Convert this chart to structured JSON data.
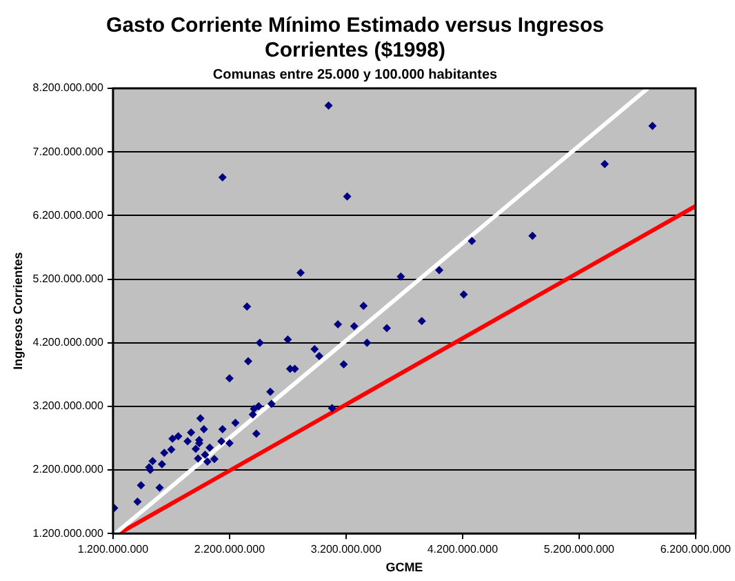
{
  "chart_data": {
    "type": "scatter",
    "title": "Gasto Corriente Mínimo Estimado versus Ingresos Corrientes ($1998)",
    "subtitle": "Comunas entre 25.000 y 100.000 habitantes",
    "xlabel": "GCME",
    "ylabel": "Ingresos Corrientes",
    "series": [
      {
        "color": "#000080",
        "marker": "diamond",
        "x": [
          2140000000,
          3050000000,
          3210000000,
          2810000000,
          2350000000,
          2460000000,
          2700000000,
          2930000000,
          3130000000,
          3270000000,
          3350000000,
          3380000000,
          3550000000,
          3670000000,
          5830000000,
          5420000000,
          4800000000,
          4280000000,
          4000000000,
          4210000000,
          3850000000,
          1210000000,
          1410000000,
          1440000000,
          1600000000,
          1520000000,
          1510000000,
          1540000000,
          1620000000,
          1640000000,
          1700000000,
          1710000000,
          1760000000,
          1840000000,
          1870000000,
          1910000000,
          1940000000,
          1940000000,
          1950000000,
          1930000000,
          1980000000,
          1990000000,
          2010000000,
          2030000000,
          2070000000,
          2140000000,
          2130000000,
          2200000000,
          2200000000,
          2250000000,
          2360000000,
          2400000000,
          2410000000,
          2430000000,
          2450000000,
          2550000000,
          2560000000,
          2720000000,
          2760000000,
          2970000000,
          3080000000,
          3180000000
        ],
        "values": [
          6800000000,
          7930000000,
          6500000000,
          5300000000,
          4770000000,
          4200000000,
          4250000000,
          4100000000,
          4490000000,
          4460000000,
          4780000000,
          4200000000,
          4430000000,
          5240000000,
          7610000000,
          7010000000,
          5880000000,
          5800000000,
          5340000000,
          4960000000,
          4540000000,
          1600000000,
          1700000000,
          1960000000,
          1920000000,
          2200000000,
          2240000000,
          2340000000,
          2290000000,
          2470000000,
          2520000000,
          2690000000,
          2730000000,
          2650000000,
          2790000000,
          2530000000,
          2670000000,
          2620000000,
          3010000000,
          2380000000,
          2840000000,
          2440000000,
          2330000000,
          2550000000,
          2370000000,
          2840000000,
          2650000000,
          2620000000,
          3640000000,
          2940000000,
          3910000000,
          3070000000,
          3160000000,
          2770000000,
          3200000000,
          3430000000,
          3240000000,
          3790000000,
          3790000000,
          3990000000,
          3170000000,
          3860000000
        ]
      },
      {
        "type": "line",
        "marker": "none",
        "color": "#ffffff",
        "x": [
          1220000000,
          5790000000
        ],
        "values": [
          1200000000,
          8200000000
        ]
      },
      {
        "type": "line",
        "marker": "none",
        "color": "#ff0000",
        "x": [
          1250000000,
          6200000000
        ],
        "values": [
          1200000000,
          6350000000
        ]
      }
    ],
    "xlim": [
      1200000000,
      6200000000
    ],
    "ylim": [
      1200000000,
      8200000000
    ],
    "xticks": [
      {
        "value": 1200000000,
        "label": "1.200.000.000"
      },
      {
        "value": 2200000000,
        "label": "2.200.000.000"
      },
      {
        "value": 3200000000,
        "label": "3.200.000.000"
      },
      {
        "value": 4200000000,
        "label": "4.200.000.000"
      },
      {
        "value": 5200000000,
        "label": "5.200.000.000"
      },
      {
        "value": 6200000000,
        "label": "6.200.000.000"
      }
    ],
    "yticks": [
      {
        "value": 1200000000,
        "label": "1.200.000.000"
      },
      {
        "value": 2200000000,
        "label": "2.200.000.000"
      },
      {
        "value": 3200000000,
        "label": "3.200.000.000"
      },
      {
        "value": 4200000000,
        "label": "4.200.000.000"
      },
      {
        "value": 5200000000,
        "label": "5.200.000.000"
      },
      {
        "value": 6200000000,
        "label": "6.200.000.000"
      },
      {
        "value": 7200000000,
        "label": "7.200.000.000"
      },
      {
        "value": 8200000000,
        "label": "8.200.000.000"
      }
    ],
    "grid": "y",
    "legend": false,
    "line_style": "solid"
  }
}
